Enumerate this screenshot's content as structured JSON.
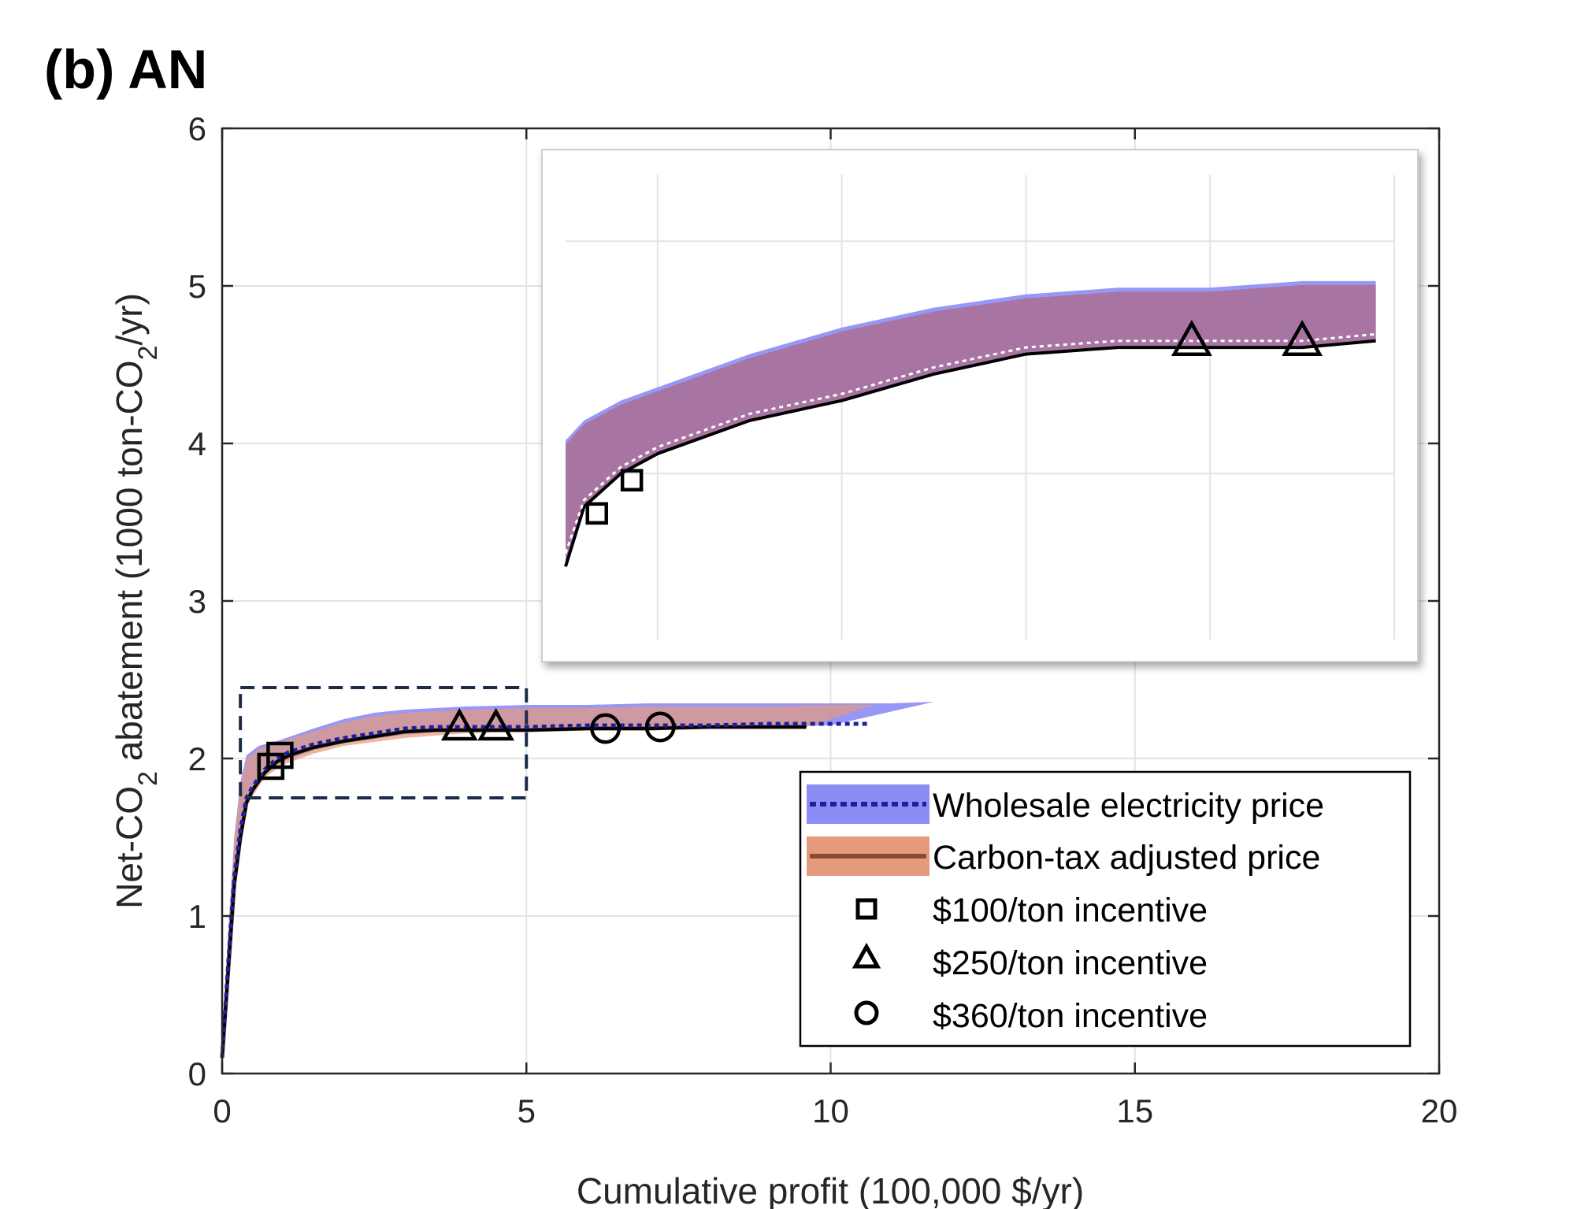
{
  "chart_data": {
    "type": "area",
    "panel_label": "(b) AN",
    "xlabel": "Cumulative profit (100,000 $/yr)",
    "ylabel": {
      "prefix": "Net-CO",
      "sub": "2",
      "middle": " abatement (1000 ton-CO",
      "sub2": "2",
      "suffix": "/yr)"
    },
    "xlim": [
      0,
      20
    ],
    "ylim": [
      0,
      6
    ],
    "x_ticks": [
      0,
      5,
      10,
      15,
      20
    ],
    "y_ticks": [
      0,
      1,
      2,
      3,
      4,
      5,
      6
    ],
    "x_tick_labels": [
      "0",
      "5",
      "10",
      "15",
      "20"
    ],
    "y_tick_labels": [
      "0",
      "1",
      "2",
      "3",
      "4",
      "5",
      "6"
    ],
    "grid": true,
    "legend_position": "bottom-right",
    "colors": {
      "wholesale_band": "#8c8cf5",
      "wholesale_line": "#1f1f9a",
      "carbon_band": "#e59a7c",
      "carbon_line": "#8a4a34",
      "overlap_band": "#a9739e",
      "median_line": "#000000",
      "zoom_box": "#1c2b4a"
    },
    "series": [
      {
        "name": "Wholesale electricity price",
        "style": "dotted-line-with-band",
        "line": [
          [
            0,
            0.1
          ],
          [
            0.1,
            0.7
          ],
          [
            0.2,
            1.25
          ],
          [
            0.3,
            1.55
          ],
          [
            0.4,
            1.75
          ],
          [
            0.5,
            1.82
          ],
          [
            0.7,
            1.93
          ],
          [
            0.9,
            2.0
          ],
          [
            1.1,
            2.04
          ],
          [
            1.5,
            2.09
          ],
          [
            2,
            2.13
          ],
          [
            2.5,
            2.16
          ],
          [
            3,
            2.19
          ],
          [
            3.5,
            2.2
          ],
          [
            4,
            2.2
          ],
          [
            5,
            2.2
          ],
          [
            6,
            2.21
          ],
          [
            7,
            2.21
          ],
          [
            8,
            2.21
          ],
          [
            9,
            2.22
          ],
          [
            10,
            2.22
          ],
          [
            10.6,
            2.22
          ]
        ],
        "band_upper": [
          [
            0,
            0.2
          ],
          [
            0.1,
            0.9
          ],
          [
            0.2,
            1.5
          ],
          [
            0.3,
            1.85
          ],
          [
            0.4,
            2.02
          ],
          [
            0.6,
            2.08
          ],
          [
            0.9,
            2.11
          ],
          [
            1.5,
            2.19
          ],
          [
            2,
            2.25
          ],
          [
            2.5,
            2.29
          ],
          [
            3,
            2.31
          ],
          [
            3.5,
            2.32
          ],
          [
            4,
            2.33
          ],
          [
            5,
            2.34
          ],
          [
            6,
            2.34
          ],
          [
            7,
            2.35
          ],
          [
            8,
            2.35
          ],
          [
            9,
            2.35
          ],
          [
            10,
            2.35
          ],
          [
            11,
            2.35
          ],
          [
            11.7,
            2.36
          ]
        ],
        "band_lower": [
          [
            0,
            0.1
          ],
          [
            0.2,
            1.2
          ],
          [
            0.4,
            1.72
          ],
          [
            0.7,
            1.9
          ],
          [
            1,
            1.98
          ],
          [
            1.5,
            2.05
          ],
          [
            2,
            2.1
          ],
          [
            3,
            2.15
          ],
          [
            4,
            2.18
          ],
          [
            6,
            2.19
          ],
          [
            8,
            2.2
          ],
          [
            10,
            2.21
          ],
          [
            11.7,
            2.36
          ]
        ]
      },
      {
        "name": "Carbon-tax adjusted price",
        "style": "solid-line-with-band",
        "line": [
          [
            0,
            0.1
          ],
          [
            0.1,
            0.65
          ],
          [
            0.2,
            1.2
          ],
          [
            0.3,
            1.5
          ],
          [
            0.4,
            1.72
          ],
          [
            0.5,
            1.8
          ],
          [
            0.7,
            1.91
          ],
          [
            0.9,
            1.98
          ],
          [
            1.1,
            2.02
          ],
          [
            1.5,
            2.07
          ],
          [
            2,
            2.11
          ],
          [
            2.5,
            2.14
          ],
          [
            3,
            2.17
          ],
          [
            3.5,
            2.18
          ],
          [
            4,
            2.18
          ],
          [
            5,
            2.18
          ],
          [
            6,
            2.19
          ],
          [
            7,
            2.19
          ],
          [
            8,
            2.2
          ],
          [
            9,
            2.2
          ],
          [
            9.6,
            2.2
          ]
        ],
        "band_upper": [
          [
            0,
            0.2
          ],
          [
            0.1,
            0.9
          ],
          [
            0.2,
            1.48
          ],
          [
            0.3,
            1.83
          ],
          [
            0.4,
            2.0
          ],
          [
            0.6,
            2.06
          ],
          [
            0.9,
            2.1
          ],
          [
            1.5,
            2.17
          ],
          [
            2,
            2.23
          ],
          [
            2.5,
            2.27
          ],
          [
            3,
            2.29
          ],
          [
            3.5,
            2.3
          ],
          [
            4,
            2.31
          ],
          [
            5,
            2.32
          ],
          [
            6,
            2.32
          ],
          [
            7,
            2.33
          ],
          [
            8,
            2.33
          ],
          [
            9,
            2.33
          ],
          [
            10,
            2.34
          ],
          [
            10.7,
            2.34
          ]
        ],
        "band_lower": [
          [
            0,
            0.1
          ],
          [
            0.2,
            1.18
          ],
          [
            0.4,
            1.7
          ],
          [
            0.7,
            1.88
          ],
          [
            1,
            1.96
          ],
          [
            1.5,
            2.03
          ],
          [
            2,
            2.08
          ],
          [
            3,
            2.13
          ],
          [
            4,
            2.16
          ],
          [
            6,
            2.18
          ],
          [
            8,
            2.19
          ],
          [
            9.6,
            2.2
          ],
          [
            10.7,
            2.34
          ]
        ]
      },
      {
        "name": "$100/ton incentive",
        "marker": "square",
        "points": [
          [
            0.8,
            1.95
          ],
          [
            0.95,
            2.02
          ]
        ]
      },
      {
        "name": "$250/ton incentive",
        "marker": "triangle",
        "points": [
          [
            3.9,
            2.2
          ],
          [
            4.5,
            2.2
          ]
        ]
      },
      {
        "name": "$360/ton incentive",
        "marker": "circle",
        "points": [
          [
            6.3,
            2.19
          ],
          [
            7.2,
            2.2
          ]
        ]
      }
    ],
    "zoom_region": {
      "x": [
        0.3,
        5.0
      ],
      "y": [
        1.75,
        2.45
      ]
    },
    "inset": {
      "xlim": [
        0.5,
        5.0
      ],
      "ylim": [
        1.75,
        2.45
      ],
      "grid_x": [
        1.0,
        2.0,
        3.0,
        4.0,
        5.0
      ],
      "grid_y": [
        2.0,
        2.35
      ],
      "upper": [
        [
          0.5,
          2.05
        ],
        [
          0.6,
          2.08
        ],
        [
          0.8,
          2.11
        ],
        [
          1.0,
          2.13
        ],
        [
          1.5,
          2.18
        ],
        [
          2.0,
          2.22
        ],
        [
          2.5,
          2.25
        ],
        [
          3.0,
          2.27
        ],
        [
          3.5,
          2.28
        ],
        [
          4.0,
          2.28
        ],
        [
          4.5,
          2.29
        ],
        [
          4.9,
          2.29
        ]
      ],
      "dotted": [
        [
          0.5,
          1.88
        ],
        [
          0.6,
          1.96
        ],
        [
          0.8,
          2.01
        ],
        [
          1.0,
          2.04
        ],
        [
          1.5,
          2.09
        ],
        [
          2.0,
          2.12
        ],
        [
          2.5,
          2.16
        ],
        [
          3.0,
          2.19
        ],
        [
          3.5,
          2.2
        ],
        [
          4.0,
          2.2
        ],
        [
          4.5,
          2.2
        ],
        [
          4.9,
          2.21
        ]
      ],
      "solid": [
        [
          0.5,
          1.86
        ],
        [
          0.6,
          1.95
        ],
        [
          0.8,
          2.0
        ],
        [
          1.0,
          2.03
        ],
        [
          1.5,
          2.08
        ],
        [
          2.0,
          2.11
        ],
        [
          2.5,
          2.15
        ],
        [
          3.0,
          2.18
        ],
        [
          3.5,
          2.19
        ],
        [
          4.0,
          2.19
        ],
        [
          4.5,
          2.19
        ],
        [
          4.9,
          2.2
        ]
      ],
      "squares": [
        [
          0.67,
          1.94
        ],
        [
          0.86,
          1.99
        ]
      ],
      "triangles": [
        [
          3.9,
          2.2
        ],
        [
          4.5,
          2.2
        ]
      ]
    }
  }
}
